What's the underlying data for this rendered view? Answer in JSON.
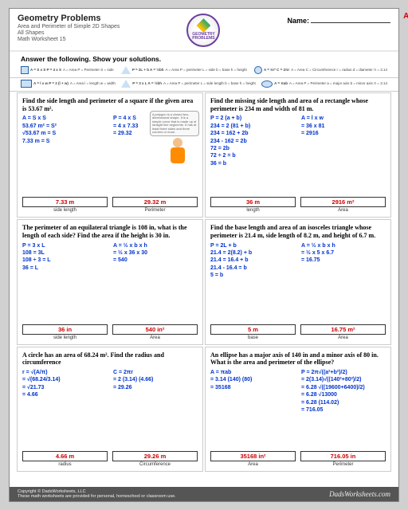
{
  "hdr": {
    "title": "Geometry Problems",
    "l1": "Area and Perimeter of Simple 2D Shapes",
    "l2": "All Shapes",
    "l3": "Math Worksheet 15",
    "logo": "GEOMETRY PROBLEMS",
    "name": "Name:",
    "ans": "ANSWER KEY"
  },
  "instr": "Answer the following.  Show your solutions.",
  "f": {
    "sq": {
      "cap": "SQUARE",
      "t": "A = S x S\nP = 4 x S",
      "t2": "A = Area\nP = Perimeter\nS = side"
    },
    "rect": {
      "cap": "RECTANGLE",
      "t": "A = l x w\nP = 2 (l + w)",
      "t2": "A = Area\nl = length\nw = width",
      "t3": "P = Perimeter\na, b = sides"
    },
    "iso": {
      "cap": "ISOSCELES TRIANGLE",
      "t": "P = 2L + b\nA = ½bh",
      "t2": "A = Area\nP = perimeter\nL = side\nb = base\nh = height"
    },
    "eq": {
      "cap": "EQUILATERAL TRIANGLE",
      "t": "P = 3 x L\nA = ½bh",
      "t2": "A = Area\nP = perimeter\nL = side length\nb = base\nh = height"
    },
    "circ": {
      "cap": "CIRCLE",
      "t": "A = πr²\nC = 2πr",
      "t2": "A = Area\nC = Circumference\nr = radius\nd = diameter\nπ = 3.14"
    },
    "ell": {
      "cap": "ELLIPSE",
      "t": "A = πab",
      "t2": "A = Area\nP = Perimeter\na = major axis\nb = minor axis\nπ = 3.14"
    }
  },
  "callout": "A polygon is a closed two-dimensional shape. It is a simple curve that is made up of straight line segments. It has at least three sides and three corners or more.",
  "p": [
    {
      "q": "Find the side length and perimeter of a square if the given area is 53.67 m².",
      "c1": [
        "A = S x S",
        "53.67 m² = S²",
        "√53.67 m = S",
        "7.33 m = S"
      ],
      "c2": [
        "P = 4 x S",
        "= 4 x 7.33",
        "= 29.32"
      ],
      "a": [
        {
          "v": "7.33 m",
          "l": "side length"
        },
        {
          "v": "29.32 m",
          "l": "Perimeter"
        }
      ]
    },
    {
      "q": "Find the missing side length and area of a rectangle whose perimeter is 234 m and width of 81 m.",
      "c1": [
        "P = 2 (a + b)",
        "234 = 2 (81 + b)",
        "234 = 162 + 2b",
        "234 - 162 = 2b",
        "72 = 2b",
        "72 ÷ 2 = b",
        "36 = b"
      ],
      "c2": [
        "A = l x w",
        "= 36 x 81",
        "= 2916"
      ],
      "a": [
        {
          "v": "36 m",
          "l": "length"
        },
        {
          "v": "2916 m²",
          "l": "Area"
        }
      ]
    },
    {
      "q": "The perimeter of an equilateral triangle is 108 in, what is the length of each side? Find the area if the height is 30 in.",
      "c1": [
        "P = 3 x L",
        "108 = 3L",
        "108 ÷ 3 = L",
        "36 = L"
      ],
      "c2": [
        "A = ½ x b x h",
        "= ½ x 36 x 30",
        "= 540"
      ],
      "a": [
        {
          "v": "36 in",
          "l": "side length"
        },
        {
          "v": "540 in²",
          "l": "Area"
        }
      ]
    },
    {
      "q": "Find the base length and area of an isosceles triangle whose perimeter is 21.4 m, side length of 8.2 m, and height of 6.7 m.",
      "c1": [
        "P = 2L + b",
        "21.4 = 2(8.2) + b",
        "21.4 = 16.4 + b",
        "21.4 - 16.4 = b",
        "5 = b"
      ],
      "c2": [
        "A = ½ x b x h",
        "= ½ x 5 x 6.7",
        "= 16.75"
      ],
      "a": [
        {
          "v": "5 m",
          "l": "base"
        },
        {
          "v": "16.75 m²",
          "l": "Area"
        }
      ]
    },
    {
      "q": "A circle has an area of 68.24 m². Find the radius and circumference",
      "c1": [
        "r = √(A/π)",
        "= √(68.24/3.14)",
        "= √21.73",
        "= 4.66"
      ],
      "c2": [
        "C = 2πr",
        "= 2 (3.14) (4.66)",
        "= 29.26"
      ],
      "a": [
        {
          "v": "4.66 m",
          "l": "radius"
        },
        {
          "v": "29.26 m",
          "l": "Circumference"
        }
      ]
    },
    {
      "q": "An ellipse has a major axis of 140 in and a minor axis of 80 in.  What is the area and perimeter of the ellipse?",
      "c1": [
        "A = πab",
        "= 3.14 (140) (80)",
        "= 35168"
      ],
      "c2": [
        "P = 2π√((a²+b²)/2)",
        "= 2(3.14)√((140²+80²)/2)",
        "= 6.28 √((19600+6400)/2)",
        "= 6.28 √13000",
        "= 6.28 (114.02)",
        "= 716.05"
      ],
      "a": [
        {
          "v": "35168 in²",
          "l": "Area"
        },
        {
          "v": "716.05 in",
          "l": "Perimeter"
        }
      ]
    }
  ],
  "ftr": {
    "c": "Copyright © DadsWorksheets, LLC",
    "d": "These math worksheets are provided for personal, homeschool or classroom use.",
    "s": "DadsWorksheets.com"
  }
}
